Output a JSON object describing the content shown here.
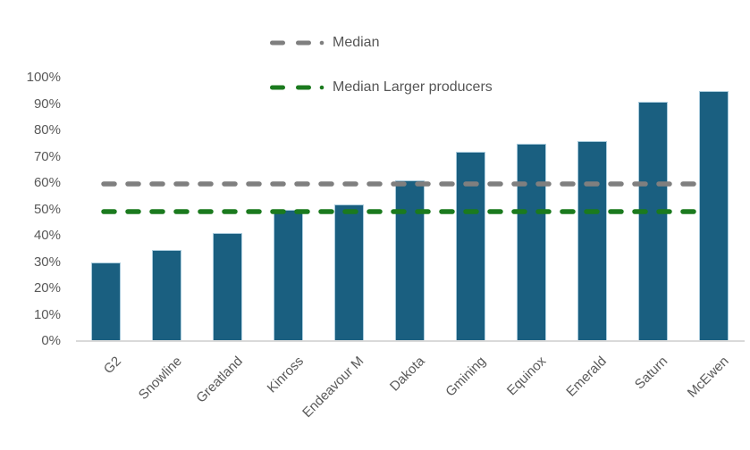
{
  "chart_data": {
    "type": "bar",
    "title": "",
    "xlabel": "",
    "ylabel": "",
    "categories": [
      "G2",
      "Snowline",
      "Greatland",
      "Kinross",
      "Endeavour M",
      "Dakota",
      "Gmining",
      "Equinox",
      "Emerald",
      "Saturn",
      "McEwen"
    ],
    "values": [
      30,
      34.5,
      41,
      50,
      52,
      61,
      72,
      75,
      76,
      91,
      95
    ],
    "ylim": [
      0,
      100
    ],
    "ytick_step": 10,
    "ytick_labels": [
      "0%",
      "10%",
      "20%",
      "30%",
      "40%",
      "50%",
      "60%",
      "70%",
      "80%",
      "90%",
      "100%"
    ],
    "grid": false,
    "legend_position": "top-center",
    "bar_color": "#1A5F80",
    "bar_border_color": "#A9CBDC",
    "axis_text_color": "#595959",
    "axis_line_color": "#D9D9D9",
    "reference_lines": [
      {
        "name": "Median",
        "value": 61.5,
        "color": "#7F7F7F",
        "style": "long-dash"
      },
      {
        "name": "Median Larger producers",
        "value": 51,
        "color": "#1B7A1E",
        "style": "long-dash"
      }
    ]
  }
}
